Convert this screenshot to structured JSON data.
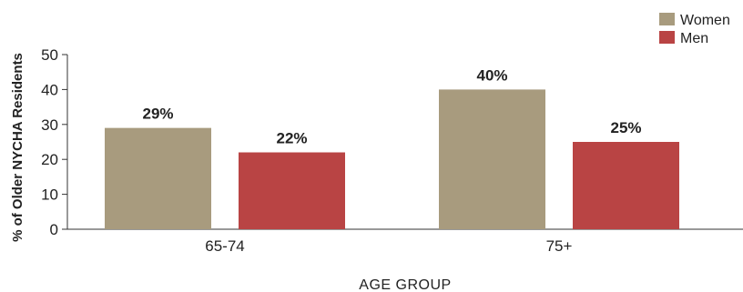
{
  "chart_data": {
    "type": "bar",
    "categories": [
      "65-74",
      "75+"
    ],
    "series": [
      {
        "name": "Women",
        "values": [
          29,
          40
        ],
        "color": "#a89b7e",
        "labels": [
          "29%",
          "40%"
        ]
      },
      {
        "name": "Men",
        "values": [
          22,
          25
        ],
        "color": "#b94444",
        "labels": [
          "22%",
          "25%"
        ]
      }
    ],
    "ylabel": "% of Older NYCHA Residents",
    "xlabel": "AGE GROUP",
    "ylim": [
      0,
      50
    ],
    "yticks": [
      "0",
      "10",
      "20",
      "30",
      "40",
      "50"
    ],
    "grid": false,
    "legend_position": "top-right"
  }
}
